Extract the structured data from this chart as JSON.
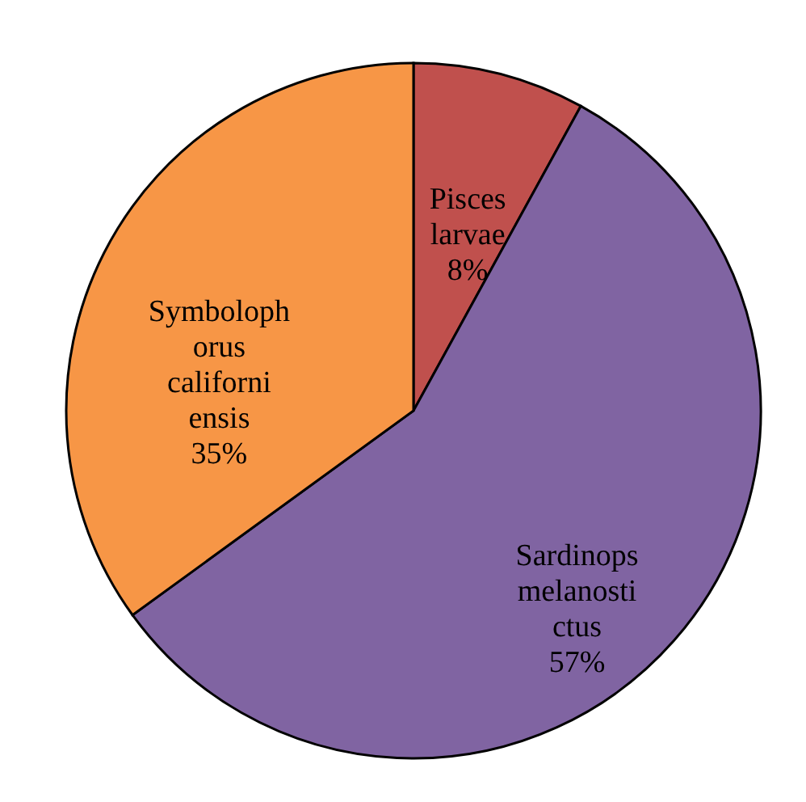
{
  "chart_data": {
    "type": "pie",
    "categories": [
      "Pisces larvae",
      "Sardinops melanostictus",
      "Symbolophorus californiensis"
    ],
    "values": [
      8,
      57,
      35
    ],
    "colors": [
      "#c0504d",
      "#8064a2",
      "#f79646"
    ],
    "value_labels": [
      "8%",
      "57%",
      "35%"
    ],
    "legend": false
  }
}
